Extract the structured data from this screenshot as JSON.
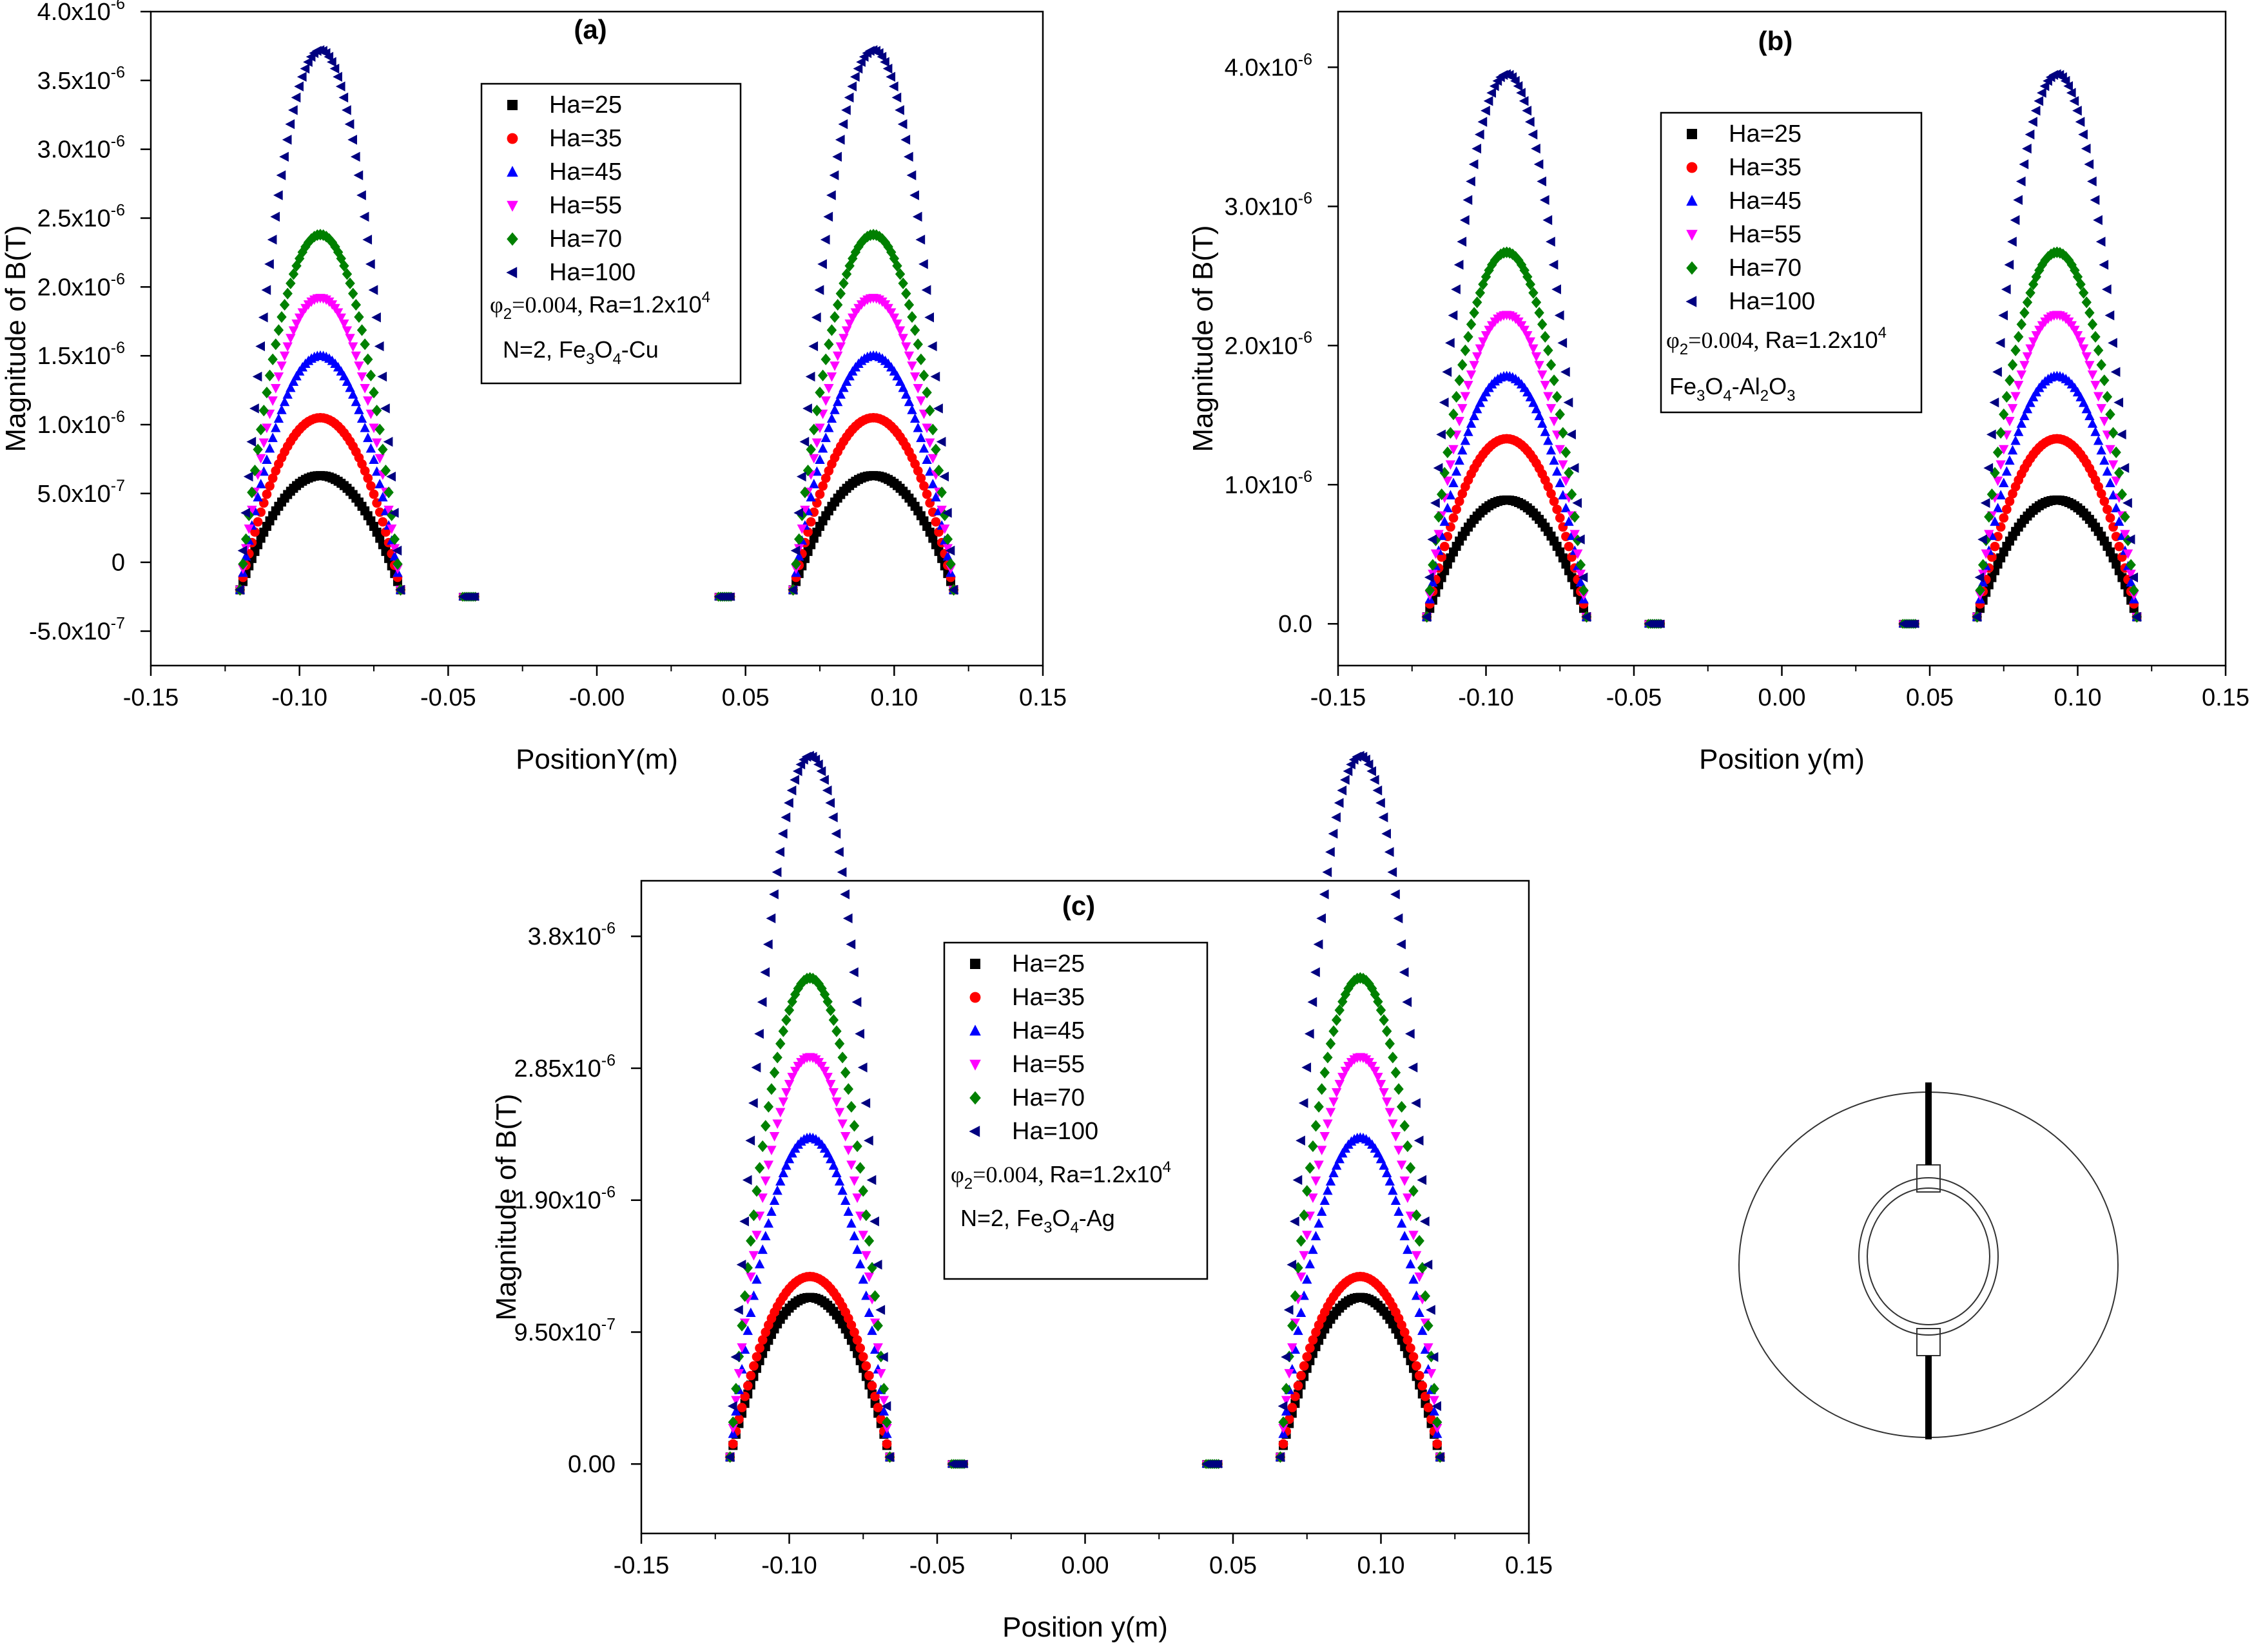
{
  "colors": {
    "Ha=25": "#000000",
    "Ha=35": "#ff0000",
    "Ha=45": "#0000ff",
    "Ha=55": "#ff00ff",
    "Ha=70": "#008000",
    "Ha=100": "#000080"
  },
  "chart_data": [
    {
      "type": "scatter",
      "panel_label": "(a)",
      "title": "(a)",
      "xlabel": "PositionY(m)",
      "ylabel": "Magnitude of B(T)",
      "xlim": [
        -0.15,
        0.15
      ],
      "ylim": [
        -7.5e-07,
        4e-06
      ],
      "xticks": [
        -0.15,
        -0.1,
        -0.05,
        0.0,
        0.05,
        0.1,
        0.15
      ],
      "xtick_labels": [
        "-0.15",
        "-0.10",
        "-0.05",
        "-0.00",
        "0.05",
        "0.10",
        "0.15"
      ],
      "yticks": [
        {
          "v": -5e-07,
          "m": "-5.0x10",
          "e": "-7"
        },
        {
          "v": 0,
          "m": "0",
          "e": ""
        },
        {
          "v": 5e-07,
          "m": "5.0x10",
          "e": "-7"
        },
        {
          "v": 1e-06,
          "m": "1.0x10",
          "e": "-6"
        },
        {
          "v": 1.5e-06,
          "m": "1.5x10",
          "e": "-6"
        },
        {
          "v": 2e-06,
          "m": "2.0x10",
          "e": "-6"
        },
        {
          "v": 2.5e-06,
          "m": "2.5x10",
          "e": "-6"
        },
        {
          "v": 3e-06,
          "m": "3.0x10",
          "e": "-6"
        },
        {
          "v": 3.5e-06,
          "m": "3.5x10",
          "e": "-6"
        },
        {
          "v": 4e-06,
          "m": "4.0x10",
          "e": "-6"
        }
      ],
      "baseline": -2e-07,
      "gap_value": -2.5e-07,
      "series": [
        {
          "name": "Ha=25",
          "peak": 6.3e-07,
          "marker": "square"
        },
        {
          "name": "Ha=35",
          "peak": 1.05e-06,
          "marker": "circle"
        },
        {
          "name": "Ha=45",
          "peak": 1.5e-06,
          "marker": "triangle-up"
        },
        {
          "name": "Ha=55",
          "peak": 1.92e-06,
          "marker": "triangle-down"
        },
        {
          "name": "Ha=70",
          "peak": 2.38e-06,
          "marker": "diamond"
        },
        {
          "name": "Ha=100",
          "peak": 3.72e-06,
          "marker": "triangle-left"
        }
      ],
      "annotation_params": {
        "phi": "φ",
        "sub": "2",
        "eq": "=0.004, ",
        "ra": "Ra=1.2x10",
        "sup": "4"
      },
      "annotation_material": {
        "pre": "N=2, Fe",
        "s1": "3",
        "mid": "O",
        "s2": "4",
        "post": "-Cu",
        "s3": "",
        "end": ""
      },
      "legend_location": "upper-center"
    },
    {
      "type": "scatter",
      "panel_label": "(b)",
      "title": "(b)",
      "xlabel": "Position y(m)",
      "ylabel": "Magnitude of B(T)",
      "xlim": [
        -0.15,
        0.15
      ],
      "ylim": [
        -3e-07,
        4.4e-06
      ],
      "xticks": [
        -0.15,
        -0.1,
        -0.05,
        0.0,
        0.05,
        0.1,
        0.15
      ],
      "xtick_labels": [
        "-0.15",
        "-0.10",
        "-0.05",
        "0.00",
        "0.05",
        "0.10",
        "0.15"
      ],
      "yticks": [
        {
          "v": 0,
          "m": "0.0",
          "e": ""
        },
        {
          "v": 1e-06,
          "m": "1.0x10",
          "e": "-6"
        },
        {
          "v": 2e-06,
          "m": "2.0x10",
          "e": "-6"
        },
        {
          "v": 3e-06,
          "m": "3.0x10",
          "e": "-6"
        },
        {
          "v": 4e-06,
          "m": "4.0x10",
          "e": "-6"
        }
      ],
      "baseline": 5e-08,
      "gap_value": 0.0,
      "series": [
        {
          "name": "Ha=25",
          "peak": 8.9e-07,
          "marker": "square"
        },
        {
          "name": "Ha=35",
          "peak": 1.33e-06,
          "marker": "circle"
        },
        {
          "name": "Ha=45",
          "peak": 1.78e-06,
          "marker": "triangle-up"
        },
        {
          "name": "Ha=55",
          "peak": 2.22e-06,
          "marker": "triangle-down"
        },
        {
          "name": "Ha=70",
          "peak": 2.67e-06,
          "marker": "diamond"
        },
        {
          "name": "Ha=100",
          "peak": 3.95e-06,
          "marker": "triangle-left"
        }
      ],
      "annotation_params": {
        "phi": "φ",
        "sub": "2",
        "eq": "=0.004, ",
        "ra": "Ra=1.2x10",
        "sup": "4"
      },
      "annotation_material": {
        "pre": "Fe",
        "s1": "3",
        "mid": "O",
        "s2": "4",
        "post": "-Al",
        "s3": "2",
        "end": "O3"
      },
      "legend_location": "upper-center-right"
    },
    {
      "type": "scatter",
      "panel_label": "(c)",
      "title": "(c)",
      "xlabel": "Position y(m)",
      "ylabel": "Magnitude of B(T)",
      "xlim": [
        -0.15,
        0.15
      ],
      "ylim": [
        -5e-07,
        4.2e-06
      ],
      "xticks": [
        -0.15,
        -0.1,
        -0.05,
        0.0,
        0.05,
        0.1,
        0.15
      ],
      "xtick_labels": [
        "-0.15",
        "-0.10",
        "-0.05",
        "0.00",
        "0.05",
        "0.10",
        "0.15"
      ],
      "yticks": [
        {
          "v": 0,
          "m": "0.00",
          "e": ""
        },
        {
          "v": 9.5e-07,
          "m": "9.50x10",
          "e": "-7"
        },
        {
          "v": 1.9e-06,
          "m": "1.90x10",
          "e": "-6"
        },
        {
          "v": 2.85e-06,
          "m": "2.85x10",
          "e": "-6"
        },
        {
          "v": 3.8e-06,
          "m": "3.8x10",
          "e": "-6"
        }
      ],
      "baseline": 5e-08,
      "gap_value": 0.0,
      "series": [
        {
          "name": "Ha=25",
          "peak": 1.2e-06,
          "marker": "square"
        },
        {
          "name": "Ha=35",
          "peak": 1.35e-06,
          "marker": "circle"
        },
        {
          "name": "Ha=45",
          "peak": 2.35e-06,
          "marker": "triangle-up"
        },
        {
          "name": "Ha=55",
          "peak": 2.93e-06,
          "marker": "triangle-down"
        },
        {
          "name": "Ha=70",
          "peak": 3.5e-06,
          "marker": "diamond"
        },
        {
          "name": "Ha=100",
          "peak": 5.1e-06,
          "marker": "triangle-left"
        }
      ],
      "annotation_params": {
        "phi": "φ",
        "sub": "2",
        "eq": "=0.004, ",
        "ra": "Ra=1.2x10",
        "sup": "4"
      },
      "annotation_material": {
        "pre": "N=2, Fe",
        "s1": "3",
        "mid": "O",
        "s2": "4",
        "post": "-Ag",
        "s3": "",
        "end": ""
      },
      "legend_location": "upper-center"
    }
  ]
}
